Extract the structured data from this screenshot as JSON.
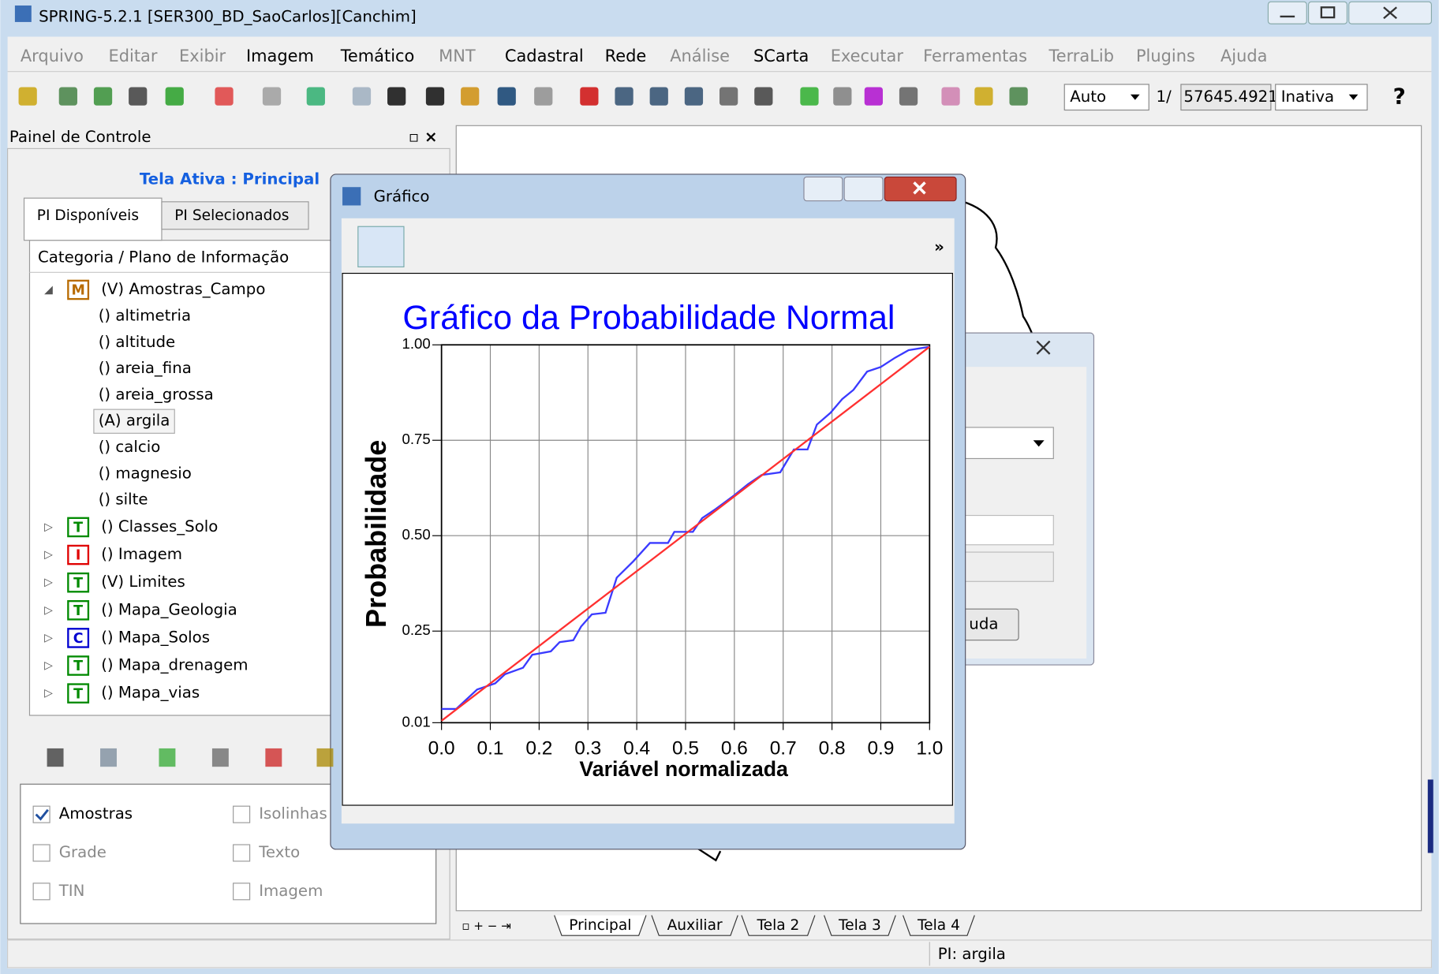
{
  "window": {
    "title": "SPRING-5.2.1 [SER300_BD_SaoCarlos][Canchim]"
  },
  "menu": [
    {
      "label": "Arquivo",
      "enabled": false
    },
    {
      "label": "Editar",
      "enabled": false
    },
    {
      "label": "Exibir",
      "enabled": false
    },
    {
      "label": "Imagem",
      "enabled": true
    },
    {
      "label": "Temático",
      "enabled": true
    },
    {
      "label": "MNT",
      "enabled": false
    },
    {
      "label": "Cadastral",
      "enabled": true
    },
    {
      "label": "Rede",
      "enabled": true
    },
    {
      "label": "Análise",
      "enabled": false
    },
    {
      "label": "SCarta",
      "enabled": true
    },
    {
      "label": "Executar",
      "enabled": false
    },
    {
      "label": "Ferramentas",
      "enabled": false
    },
    {
      "label": "TerraLib",
      "enabled": false
    },
    {
      "label": "Plugins",
      "enabled": false
    },
    {
      "label": "Ajuda",
      "enabled": false
    }
  ],
  "toolbar": {
    "scale_mode": "Auto",
    "scale_prefix": "1/",
    "scale_value": "57645.4921",
    "state": "Inativa",
    "help": "?"
  },
  "control_panel": {
    "title": "Painel de Controle",
    "active_screen": "Tela Ativa : Principal",
    "tabs": [
      "PI Disponíveis",
      "PI Selecionados"
    ],
    "tree_header": "Categoria / Plano de Informação",
    "categories": [
      {
        "badge": "M",
        "color": "#b86b00",
        "label": "(V) Amostras_Campo",
        "planes": [
          "() altimetria",
          "() altitude",
          "() areia_fina",
          "() areia_grossa",
          "(A) argila",
          "() calcio",
          "() magnesio",
          "() silte"
        ]
      },
      {
        "badge": "T",
        "color": "#008a00",
        "label": "() Classes_Solo"
      },
      {
        "badge": "I",
        "color": "#e00000",
        "label": "() Imagem"
      },
      {
        "badge": "T",
        "color": "#008a00",
        "label": "(V) Limites"
      },
      {
        "badge": "T",
        "color": "#008a00",
        "label": "() Mapa_Geologia"
      },
      {
        "badge": "C",
        "color": "#0000d0",
        "label": "() Mapa_Solos"
      },
      {
        "badge": "T",
        "color": "#008a00",
        "label": "() Mapa_drenagem"
      },
      {
        "badge": "T",
        "color": "#008a00",
        "label": "() Mapa_vias"
      }
    ],
    "checkboxes": [
      {
        "label": "Amostras",
        "checked": true,
        "enabled": true
      },
      {
        "label": "Isolinhas",
        "checked": false,
        "enabled": false
      },
      {
        "label": "Grade",
        "checked": false,
        "enabled": false
      },
      {
        "label": "Texto",
        "checked": false,
        "enabled": false
      },
      {
        "label": "TIN",
        "checked": false,
        "enabled": false
      },
      {
        "label": "Imagem",
        "checked": false,
        "enabled": false
      }
    ]
  },
  "screen_tabs": [
    "Principal",
    "Auxiliar",
    "Tela 2",
    "Tela 3",
    "Tela 4"
  ],
  "status": "PI: argila",
  "background_dialog": {
    "button": "uda"
  },
  "graph_window": {
    "title": "Gráfico",
    "toolbar_more": "»",
    "chart_data": {
      "type": "line",
      "title": "Gráfico da Probabilidade Normal",
      "xlabel": "Variável normalizada",
      "ylabel": "Probabilidade",
      "title_color": "#0000ff",
      "xlim": [
        0,
        1
      ],
      "ylim": [
        0.01,
        1
      ],
      "xticks": [
        {
          "value": 0,
          "label": "0.0"
        },
        0.1,
        0.2,
        0.3,
        0.4,
        0.5,
        0.6,
        0.7,
        0.8,
        0.9,
        {
          "value": 1,
          "label": "1.0"
        }
      ],
      "yticks": [
        0.01,
        0.25,
        {
          "value": 0.5,
          "label": "0.50"
        },
        0.75,
        {
          "value": 1,
          "label": "1.00"
        }
      ],
      "grid": true,
      "series": [
        {
          "color": "#3a3aff",
          "x": [
            0,
            0.03,
            0.073,
            0.11,
            0.13,
            0.167,
            0.186,
            0.224,
            0.242,
            0.27,
            0.286,
            0.308,
            0.336,
            0.359,
            0.393,
            0.427,
            0.464,
            0.477,
            0.515,
            0.534,
            0.562,
            0.6,
            0.628,
            0.656,
            0.694,
            0.722,
            0.75,
            0.769,
            0.797,
            0.821,
            0.844,
            0.872,
            0.9,
            0.929,
            0.957,
            1
          ],
          "values": [
            0.046,
            0.046,
            0.097,
            0.113,
            0.137,
            0.154,
            0.188,
            0.197,
            0.221,
            0.226,
            0.262,
            0.294,
            0.298,
            0.39,
            0.433,
            0.481,
            0.481,
            0.51,
            0.51,
            0.546,
            0.57,
            0.606,
            0.635,
            0.659,
            0.666,
            0.726,
            0.726,
            0.791,
            0.822,
            0.858,
            0.882,
            0.93,
            0.942,
            0.966,
            0.986,
            0.995
          ]
        },
        {
          "color": "#ff3030",
          "x": [
            0,
            1
          ],
          "values": [
            0.015,
            0.995
          ]
        }
      ]
    }
  }
}
